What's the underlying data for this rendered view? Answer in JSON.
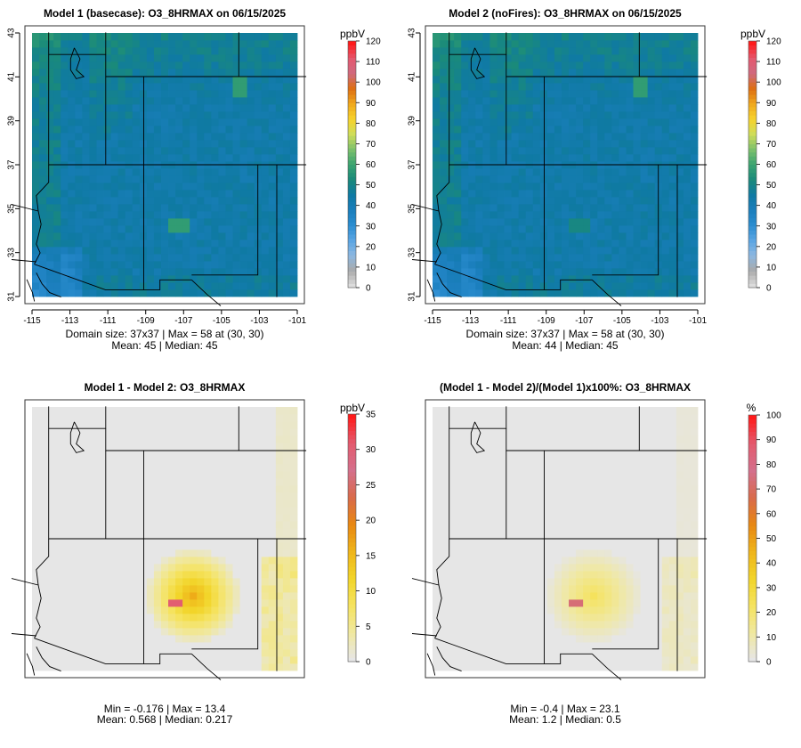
{
  "colors": {
    "frame": "#333333",
    "border": "#000000",
    "concentration_palette": [
      "#dcdcdc",
      "#aaaaaa",
      "#8cb7e0",
      "#5aa5e3",
      "#2b8dd0",
      "#1a7ebc",
      "#0f7aa3",
      "#1a8a7a",
      "#3aa371",
      "#7cc06c",
      "#cfdd5a",
      "#f7d22c",
      "#f0a81d",
      "#dd6f12",
      "#cf6a7f",
      "#e4586f",
      "#ff1a1a"
    ],
    "difference_palette": [
      "#e6e6e6",
      "#f0e8a0",
      "#f5e360",
      "#f2d52a",
      "#efb51a",
      "#e88812",
      "#d96a4a",
      "#d4708c",
      "#e35b6f",
      "#ff1a1a"
    ]
  },
  "chart_data": [
    {
      "id": "model1",
      "type": "heatmap",
      "title": "Model 1 (basecase): O3_8HRMAX on 06/15/2025",
      "unit": "ppbV",
      "xlim": [
        -115,
        -101
      ],
      "ylim": [
        31,
        43
      ],
      "x_ticks": [
        "-115",
        "-113",
        "-111",
        "-109",
        "-107",
        "-105",
        "-103",
        "-101"
      ],
      "y_ticks": [
        "31",
        "33",
        "35",
        "37",
        "39",
        "41",
        "43"
      ],
      "colorbar_ticks": [
        "0",
        "10",
        "20",
        "30",
        "40",
        "50",
        "60",
        "70",
        "80",
        "90",
        "100",
        "110",
        "120"
      ],
      "colorbar_range": [
        0,
        120
      ],
      "grid_size": [
        37,
        37
      ],
      "stats_line1": "Domain size: 37x37 | Max = 58 at (30, 30)",
      "stats_line2": "Mean: 45 |  Median: 45",
      "mean": 45,
      "median": 45,
      "max": 58
    },
    {
      "id": "model2",
      "type": "heatmap",
      "title": "Model 2 (noFires): O3_8HRMAX on 06/15/2025",
      "unit": "ppbV",
      "xlim": [
        -115,
        -101
      ],
      "ylim": [
        31,
        43
      ],
      "x_ticks": [
        "-115",
        "-113",
        "-111",
        "-109",
        "-107",
        "-105",
        "-103",
        "-101"
      ],
      "y_ticks": [
        "31",
        "33",
        "35",
        "37",
        "39",
        "41",
        "43"
      ],
      "colorbar_ticks": [
        "0",
        "10",
        "20",
        "30",
        "40",
        "50",
        "60",
        "70",
        "80",
        "90",
        "100",
        "110",
        "120"
      ],
      "colorbar_range": [
        0,
        120
      ],
      "grid_size": [
        37,
        37
      ],
      "stats_line1": "Domain size: 37x37 | Max = 58 at (30, 30)",
      "stats_line2": "Mean: 44 |  Median: 45",
      "mean": 44,
      "median": 45,
      "max": 58
    },
    {
      "id": "diff",
      "type": "heatmap",
      "title": "Model 1 - Model 2: O3_8HRMAX",
      "unit": "ppbV",
      "colorbar_ticks": [
        "0",
        "5",
        "10",
        "15",
        "20",
        "25",
        "30",
        "35"
      ],
      "colorbar_range": [
        0,
        35
      ],
      "stats_line1": "Min = -0.176 | Max = 13.4",
      "stats_line2": "Mean: 0.568 |  Median: 0.217",
      "min": -0.176,
      "max": 13.4,
      "mean": 0.568,
      "median": 0.217
    },
    {
      "id": "pctdiff",
      "type": "heatmap",
      "title": "(Model 1 - Model 2)/(Model 1)x100%: O3_8HRMAX",
      "unit": "%",
      "colorbar_ticks": [
        "0",
        "10",
        "20",
        "30",
        "40",
        "50",
        "60",
        "70",
        "80",
        "90",
        "100"
      ],
      "colorbar_range": [
        0,
        100
      ],
      "stats_line1": "Min = -0.4 | Max = 23.1",
      "stats_line2": "Mean: 1.2 |  Median: 0.5",
      "min": -0.4,
      "max": 23.1,
      "mean": 1.2,
      "median": 0.5
    }
  ]
}
